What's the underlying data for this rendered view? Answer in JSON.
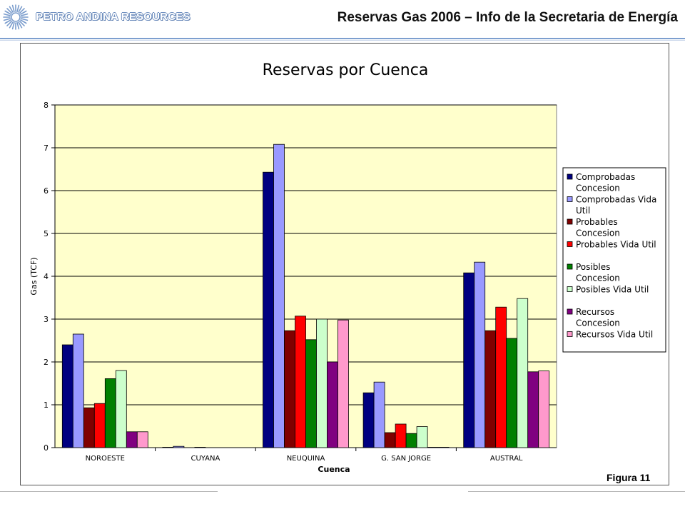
{
  "header": {
    "company": "PETRO ANDINA RESOURCES",
    "title": "Reservas Gas 2006 – Info de la Secretaria de Energía",
    "logo": "sunburst-logo-icon"
  },
  "figure_label": "Figura 11",
  "chart_data": {
    "type": "bar",
    "title": "Reservas por Cuenca",
    "xlabel": "Cuenca",
    "ylabel": "Gas (TCF)",
    "ylim": [
      0,
      8
    ],
    "yticks": [
      "0",
      "1",
      "2",
      "3",
      "4",
      "5",
      "6",
      "7",
      "8"
    ],
    "grid": true,
    "legend_position": "right",
    "plot_background": "#ffffcc",
    "categories": [
      "NOROESTE",
      "CUYANA",
      "NEUQUINA",
      "G. SAN JORGE",
      "AUSTRAL"
    ],
    "series": [
      {
        "name": "Comprobadas Concesion",
        "legend_lines": [
          "Comprobadas",
          "Concesion"
        ],
        "color": "#000080",
        "values": [
          2.4,
          0.01,
          6.43,
          1.28,
          4.08
        ]
      },
      {
        "name": "Comprobadas Vida Util",
        "legend_lines": [
          "Comprobadas Vida",
          "Util"
        ],
        "color": "#9999ff",
        "values": [
          2.65,
          0.03,
          7.08,
          1.53,
          4.33
        ]
      },
      {
        "name": "Probables Concesion",
        "legend_lines": [
          "Probables",
          "Concesion"
        ],
        "color": "#800000",
        "values": [
          0.93,
          0.0,
          2.73,
          0.35,
          2.73
        ]
      },
      {
        "name": "Probables Vida Util",
        "legend_lines": [
          "Probables Vida Util"
        ],
        "color": "#ff0000",
        "values": [
          1.03,
          0.01,
          3.07,
          0.55,
          3.28
        ]
      },
      {
        "name": "Posibles Concesion",
        "legend_lines": [
          "Posibles",
          "Concesion"
        ],
        "color": "#008000",
        "values": [
          1.61,
          0.0,
          2.52,
          0.33,
          2.55
        ]
      },
      {
        "name": "Posibles Vida Util",
        "legend_lines": [
          "Posibles Vida Util"
        ],
        "color": "#ccffcc",
        "values": [
          1.8,
          0.0,
          3.0,
          0.49,
          3.48
        ]
      },
      {
        "name": "Recursos Concesion",
        "legend_lines": [
          "Recursos",
          "Concesion"
        ],
        "color": "#800080",
        "values": [
          0.37,
          0.0,
          2.0,
          0.01,
          1.77
        ]
      },
      {
        "name": "Recursos Vida Util",
        "legend_lines": [
          "Recursos Vida Util"
        ],
        "color": "#ff99cc",
        "values": [
          0.37,
          0.0,
          2.98,
          0.01,
          1.79
        ]
      }
    ]
  }
}
